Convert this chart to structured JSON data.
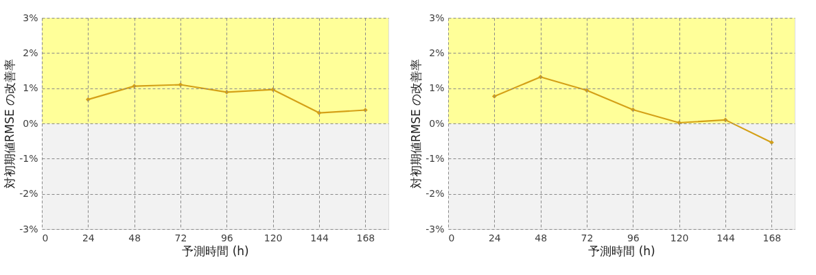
{
  "chart_data": [
    {
      "type": "line",
      "xlabel": "予測時間 (h)",
      "ylabel": "対初期値RMSE の改善率",
      "x": [
        24,
        48,
        72,
        96,
        120,
        144,
        168
      ],
      "series": [
        {
          "color": "#d4a017",
          "values": [
            0.68,
            1.06,
            1.1,
            0.89,
            0.96,
            0.3,
            0.38
          ]
        }
      ],
      "xlim": [
        0,
        180
      ],
      "xticks": [
        0,
        24,
        48,
        72,
        96,
        120,
        144,
        168
      ],
      "ylim": [
        -3,
        3
      ],
      "yticks": [
        {
          "value": -3,
          "label": "-3%"
        },
        {
          "value": -2,
          "label": "-2%"
        },
        {
          "value": -1,
          "label": "-1%"
        },
        {
          "value": 0,
          "label": "0%"
        },
        {
          "value": 1,
          "label": "1%"
        },
        {
          "value": 2,
          "label": "2%"
        },
        {
          "value": 3,
          "label": "3%"
        }
      ],
      "bands": [
        {
          "axis": "y",
          "from": 0,
          "to": 3,
          "color": "#ffff99"
        },
        {
          "axis": "y",
          "from": -3,
          "to": 0,
          "color": "#f2f2f2"
        }
      ],
      "grid": true,
      "marker": "diamond",
      "line_style": "solid"
    },
    {
      "type": "line",
      "xlabel": "予測時間 (h)",
      "ylabel": "対初期値RMSE の改善率",
      "x": [
        24,
        48,
        72,
        96,
        120,
        144,
        168
      ],
      "series": [
        {
          "color": "#d4a017",
          "values": [
            0.77,
            1.32,
            0.94,
            0.39,
            0.02,
            0.1,
            -0.54
          ]
        }
      ],
      "xlim": [
        0,
        180
      ],
      "xticks": [
        0,
        24,
        48,
        72,
        96,
        120,
        144,
        168
      ],
      "ylim": [
        -3,
        3
      ],
      "yticks": [
        {
          "value": -3,
          "label": "-3%"
        },
        {
          "value": -2,
          "label": "-2%"
        },
        {
          "value": -1,
          "label": "-1%"
        },
        {
          "value": 0,
          "label": "0%"
        },
        {
          "value": 1,
          "label": "1%"
        },
        {
          "value": 2,
          "label": "2%"
        },
        {
          "value": 3,
          "label": "3%"
        }
      ],
      "bands": [
        {
          "axis": "y",
          "from": 0,
          "to": 3,
          "color": "#ffff99"
        },
        {
          "axis": "y",
          "from": -3,
          "to": 0,
          "color": "#f2f2f2"
        }
      ],
      "grid": true,
      "marker": "diamond",
      "line_style": "solid"
    }
  ]
}
